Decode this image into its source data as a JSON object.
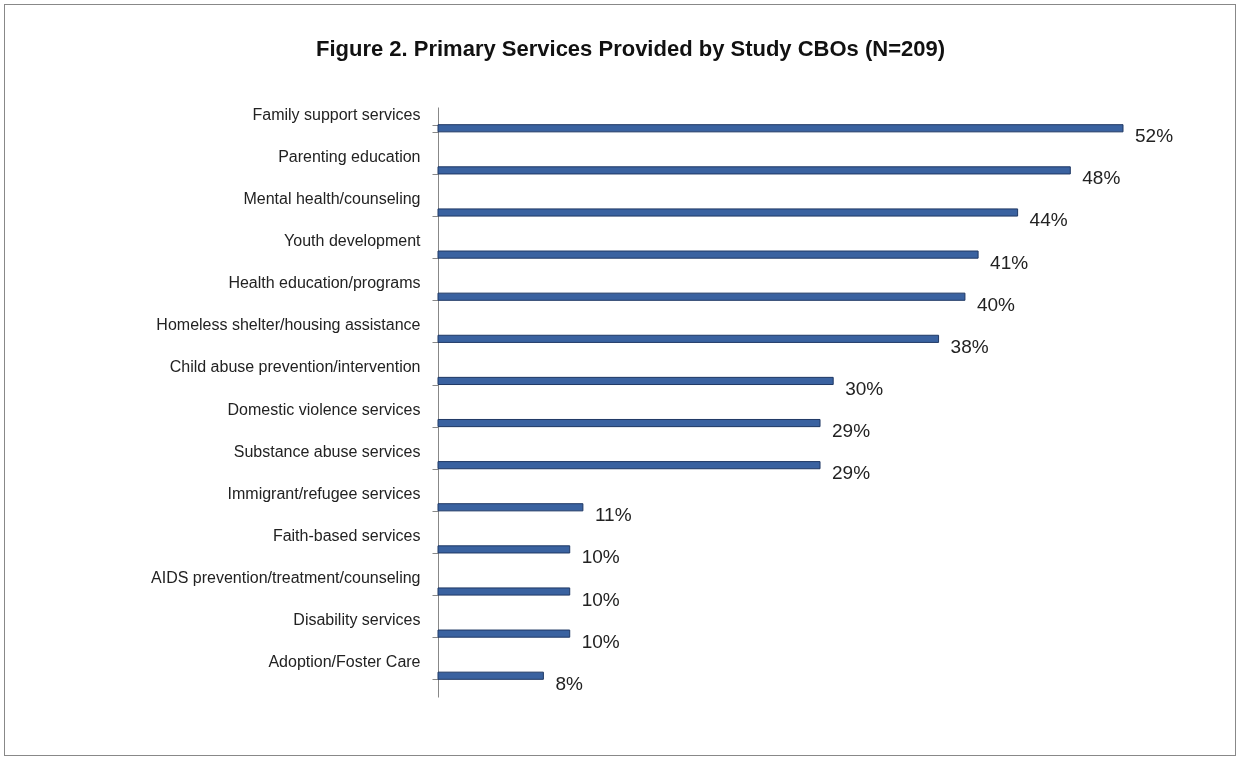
{
  "chart_data": {
    "type": "bar",
    "orientation": "horizontal",
    "title": "Figure 2. Primary Services Provided by Study CBOs (N=209)",
    "categories": [
      "Family support services",
      "Parenting education",
      "Mental health/counseling",
      "Youth development",
      "Health education/programs",
      "Homeless shelter/housing assistance",
      "Child abuse prevention/intervention",
      "Domestic violence services",
      "Substance abuse services",
      "Immigrant/refugee services",
      "Faith-based services",
      "AIDS prevention/treatment/counseling",
      "Disability services",
      "Adoption/Foster Care"
    ],
    "values": [
      52,
      48,
      44,
      41,
      40,
      38,
      30,
      29,
      29,
      11,
      10,
      10,
      10,
      8
    ],
    "value_labels": [
      "52%",
      "48%",
      "44%",
      "41%",
      "40%",
      "38%",
      "30%",
      "29%",
      "29%",
      "11%",
      "10%",
      "10%",
      "10%",
      "8%"
    ],
    "color": "#3a62a0"
  }
}
